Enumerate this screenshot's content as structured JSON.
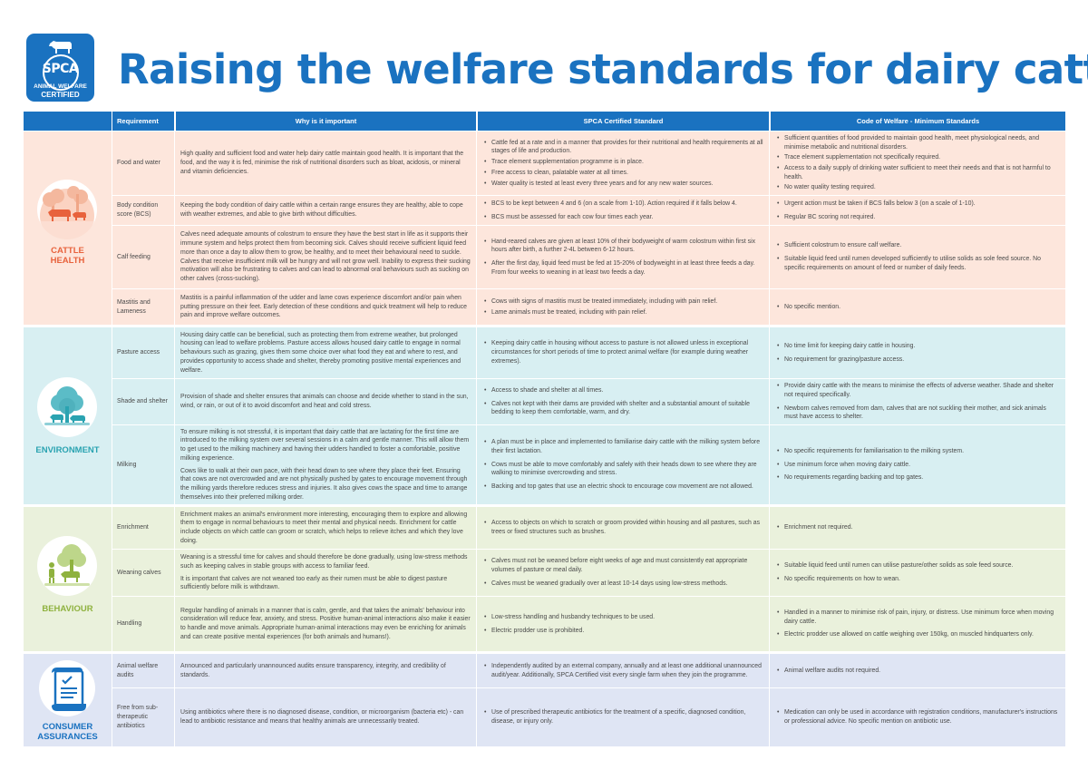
{
  "logo": {
    "brand": "SPCA",
    "line1": "ANIMAL WELFARE",
    "line2": "CERTIFIED"
  },
  "title": "Raising the welfare standards for dairy cattle",
  "header": {
    "requirement": "Requirement",
    "why": "Why is it important",
    "spca": "SPCA Certified Standard",
    "code": "Code of Welfare - Minimum Standards"
  },
  "colors": {
    "brand_blue": "#1a72c0",
    "cattle_health_bg": "#fde6dc",
    "cattle_health_accent": "#e8623c",
    "environment_bg": "#d8eff2",
    "environment_accent": "#2aa3b1",
    "behaviour_bg": "#eaf1dc",
    "behaviour_accent": "#8fb23f",
    "consumer_bg": "#dfe5f4",
    "consumer_accent": "#1a72c0"
  },
  "sections": [
    {
      "category": [
        "CATTLE",
        "HEALTH"
      ],
      "icon": "cattle-icon",
      "rows": [
        {
          "requirement": [
            "Food and water"
          ],
          "why": [
            "High quality and sufficient food and water help dairy cattle maintain good health. It is important that the food, and the way it is fed, minimise the risk of nutritional disorders such as bloat, acidosis, or mineral and vitamin deficiencies."
          ],
          "spca": [
            "Cattle fed at a rate and in a manner that provides for their nutritional and health requirements at all stages of life and production.",
            "Trace element supplementation programme is in place.",
            "Free access to clean, palatable water at all times.",
            "Water quality is tested at least every three years and for any new water sources."
          ],
          "code": [
            "Sufficient quantities of food provided to maintain good health, meet physiological needs, and minimise metabolic and nutritional disorders.",
            "Trace element supplementation not specifically required.",
            "Access to a daily supply of drinking water sufficient to meet their needs and that is not harmful to health.",
            "No water quality testing required."
          ]
        },
        {
          "requirement": [
            "Body condition score (BCS)"
          ],
          "why": [
            "Keeping the body condition of dairy cattle within a certain range ensures they are healthy, able to cope with weather extremes, and able to give birth without difficulties."
          ],
          "spca": [
            "BCS to be kept between 4 and 6 (on a scale from 1-10). Action required if it falls below 4.",
            "BCS must be assessed for each cow four times each year."
          ],
          "code": [
            "Urgent action must be taken if BCS falls below 3 (on a scale of 1-10).",
            "Regular BC scoring not required."
          ]
        },
        {
          "requirement": [
            "Calf feeding"
          ],
          "why": [
            "Calves need adequate amounts of colostrum to ensure they have the best start in life as it supports their immune system and helps protect them from becoming sick. Calves should receive sufficient liquid feed more than once a day to allow them to grow, be healthy, and to meet their behavioural need to suckle. Calves that receive insufficient milk will be hungry and will not grow well. Inability to express their sucking motivation will also be frustrating to calves and can lead to abnormal oral behaviours such as sucking on other calves (cross-sucking)."
          ],
          "spca": [
            "Hand-reared calves are given at least 10% of their bodyweight of warm colostrum within first six hours after birth, a further 2-4L between 6-12 hours.",
            "After the first day, liquid feed must be fed at 15-20% of bodyweight in at least three feeds a day. From four weeks to weaning in at least two feeds a day."
          ],
          "code": [
            "Sufficient colostrum to ensure calf welfare.",
            "Suitable liquid feed until rumen developed sufficiently to utilise solids as sole feed source. No specific requirements on amount of feed or number of daily feeds."
          ]
        },
        {
          "requirement": [
            "Mastitis and Lameness"
          ],
          "why": [
            "Mastitis is a painful inflammation of the udder and lame cows experience discomfort and/or pain when putting pressure on their feet. Early detection of these conditions and quick treatment will help to reduce pain and improve welfare outcomes."
          ],
          "spca": [
            "Cows with signs of mastitis must be treated immediately, including with pain relief.",
            "Lame animals must be treated, including with pain relief."
          ],
          "code": [
            "No specific mention."
          ]
        }
      ]
    },
    {
      "category": [
        "ENVIRONMENT"
      ],
      "icon": "tree-icon",
      "rows": [
        {
          "requirement": [
            "Pasture access"
          ],
          "why": [
            "Housing dairy cattle can be beneficial, such as protecting them from extreme weather, but prolonged housing can lead to welfare problems. Pasture access allows housed dairy cattle to engage in normal behaviours such as grazing, gives them some choice over what food they eat and where to rest, and provides opportunity to access shade and shelter, thereby promoting positive mental experiences and welfare."
          ],
          "spca": [
            "Keeping dairy cattle in housing without access to pasture is not allowed unless in exceptional circumstances for short periods of time to protect animal welfare (for example during weather extremes)."
          ],
          "code": [
            "No time limit for keeping dairy cattle in housing.",
            "No requirement for grazing/pasture access."
          ]
        },
        {
          "requirement": [
            "Shade and shelter"
          ],
          "why": [
            "Provision of shade and shelter ensures that animals can choose and decide whether to stand in the sun, wind, or rain, or out of it to avoid discomfort and heat and cold stress."
          ],
          "spca": [
            "Access to shade and shelter at all times.",
            "Calves not kept with their dams are provided with shelter and a substantial amount of suitable bedding to keep them comfortable, warm, and dry."
          ],
          "code": [
            "Provide dairy cattle with the means to minimise the effects of adverse weather. Shade and shelter not required specifically.",
            "Newborn calves removed from dam, calves that are not suckling their mother, and sick animals must have access to shelter."
          ]
        },
        {
          "requirement": [
            "Milking"
          ],
          "why": [
            "To ensure milking is not stressful, it is important that dairy cattle that are lactating for the first time are introduced to the milking system over several sessions in a calm and gentle manner. This will allow them to get used to the milking machinery and having their udders handled to foster a comfortable, positive milking experience.",
            "Cows like to walk at their own pace, with their head down to see where they place their feet. Ensuring that cows are not overcrowded and are not physically pushed by gates to encourage movement through the milking yards therefore reduces stress and injuries. It also gives cows the space and time to arrange themselves into their preferred milking order."
          ],
          "spca": [
            "A plan must be in place and implemented to familiarise dairy cattle with the milking system before their first lactation.",
            "Cows must be able to move comfortably and safely with their heads down to see where they are walking to minimise overcrowding and stress.",
            "Backing and top gates that use an electric shock to encourage cow movement are not allowed."
          ],
          "code": [
            "No specific requirements for familiarisation to the milking system.",
            "Use minimum force when moving dairy cattle.",
            "No requirements regarding backing and top gates."
          ]
        }
      ]
    },
    {
      "category": [
        "BEHAVIOUR"
      ],
      "icon": "person-tree-cow-icon",
      "rows": [
        {
          "requirement": [
            "Enrichment"
          ],
          "why": [
            "Enrichment makes an animal's environment more interesting, encouraging them to explore and allowing them to engage in normal behaviours to meet their mental and physical needs. Enrichment for cattle include objects on which cattle can groom or scratch, which helps to relieve itches and which they love doing."
          ],
          "spca": [
            "Access to objects on which to scratch or groom provided within housing and all pastures, such as trees or fixed structures such as brushes."
          ],
          "code": [
            "Enrichment not required."
          ]
        },
        {
          "requirement": [
            "Weaning calves"
          ],
          "why": [
            "Weaning is a stressful time for calves and should therefore be done gradually, using low-stress methods such as keeping calves in stable groups with access to familiar feed.",
            "It is important that calves are not weaned too early as their rumen must be able to digest pasture sufficiently before milk is withdrawn."
          ],
          "spca": [
            "Calves must not be weaned before eight weeks of age and must consistently eat appropriate volumes of pasture or meal daily.",
            "Calves must be weaned gradually over at least 10-14 days using low-stress methods."
          ],
          "code": [
            "Suitable liquid feed until rumen can utilise pasture/other solids as sole feed source.",
            "No specific requirements on how to wean."
          ]
        },
        {
          "requirement": [
            "Handling"
          ],
          "why": [
            "Regular handling of animals in a manner that is calm, gentle, and that takes the animals' behaviour into consideration will reduce fear, anxiety, and stress. Positive human-animal interactions also make it easier to handle and move animals. Appropriate human-animal interactions may even be enriching for animals and can create positive mental experiences (for both animals and humans!)."
          ],
          "spca": [
            "Low-stress handling and husbandry techniques to be used.",
            "Electric prodder use is prohibited."
          ],
          "code": [
            "Handled in a manner to minimise risk of pain, injury, or distress. Use minimum force when moving dairy cattle.",
            "Electric prodder use allowed on cattle weighing over 150kg, on muscled hindquarters only."
          ]
        }
      ]
    },
    {
      "category": [
        "CONSUMER",
        "ASSURANCES"
      ],
      "icon": "scroll-icon",
      "rows": [
        {
          "requirement": [
            "Animal welfare audits"
          ],
          "why": [
            "Announced and particularly unannounced audits ensure transparency, integrity, and credibility of standards."
          ],
          "spca": [
            "Independently audited by an external company, annually and at least one additional unannounced audit/year. Additionally, SPCA Certified visit every single farm when they join the programme."
          ],
          "code": [
            "Animal welfare audits not required."
          ]
        },
        {
          "requirement": [
            "Free from sub-therapeutic antibiotics"
          ],
          "why": [
            "Using antibiotics where there is no diagnosed disease, condition, or microorganism (bacteria etc) - can lead to antibiotic resistance and means that healthy animals are unnecessarily treated."
          ],
          "spca": [
            "Use of prescribed therapeutic antibiotics for the treatment of a specific, diagnosed condition, disease, or injury only."
          ],
          "code": [
            "Medication can only be used in accordance with registration conditions, manufacturer's instructions or professional advice. No specific mention on antibiotic use."
          ]
        }
      ]
    }
  ]
}
